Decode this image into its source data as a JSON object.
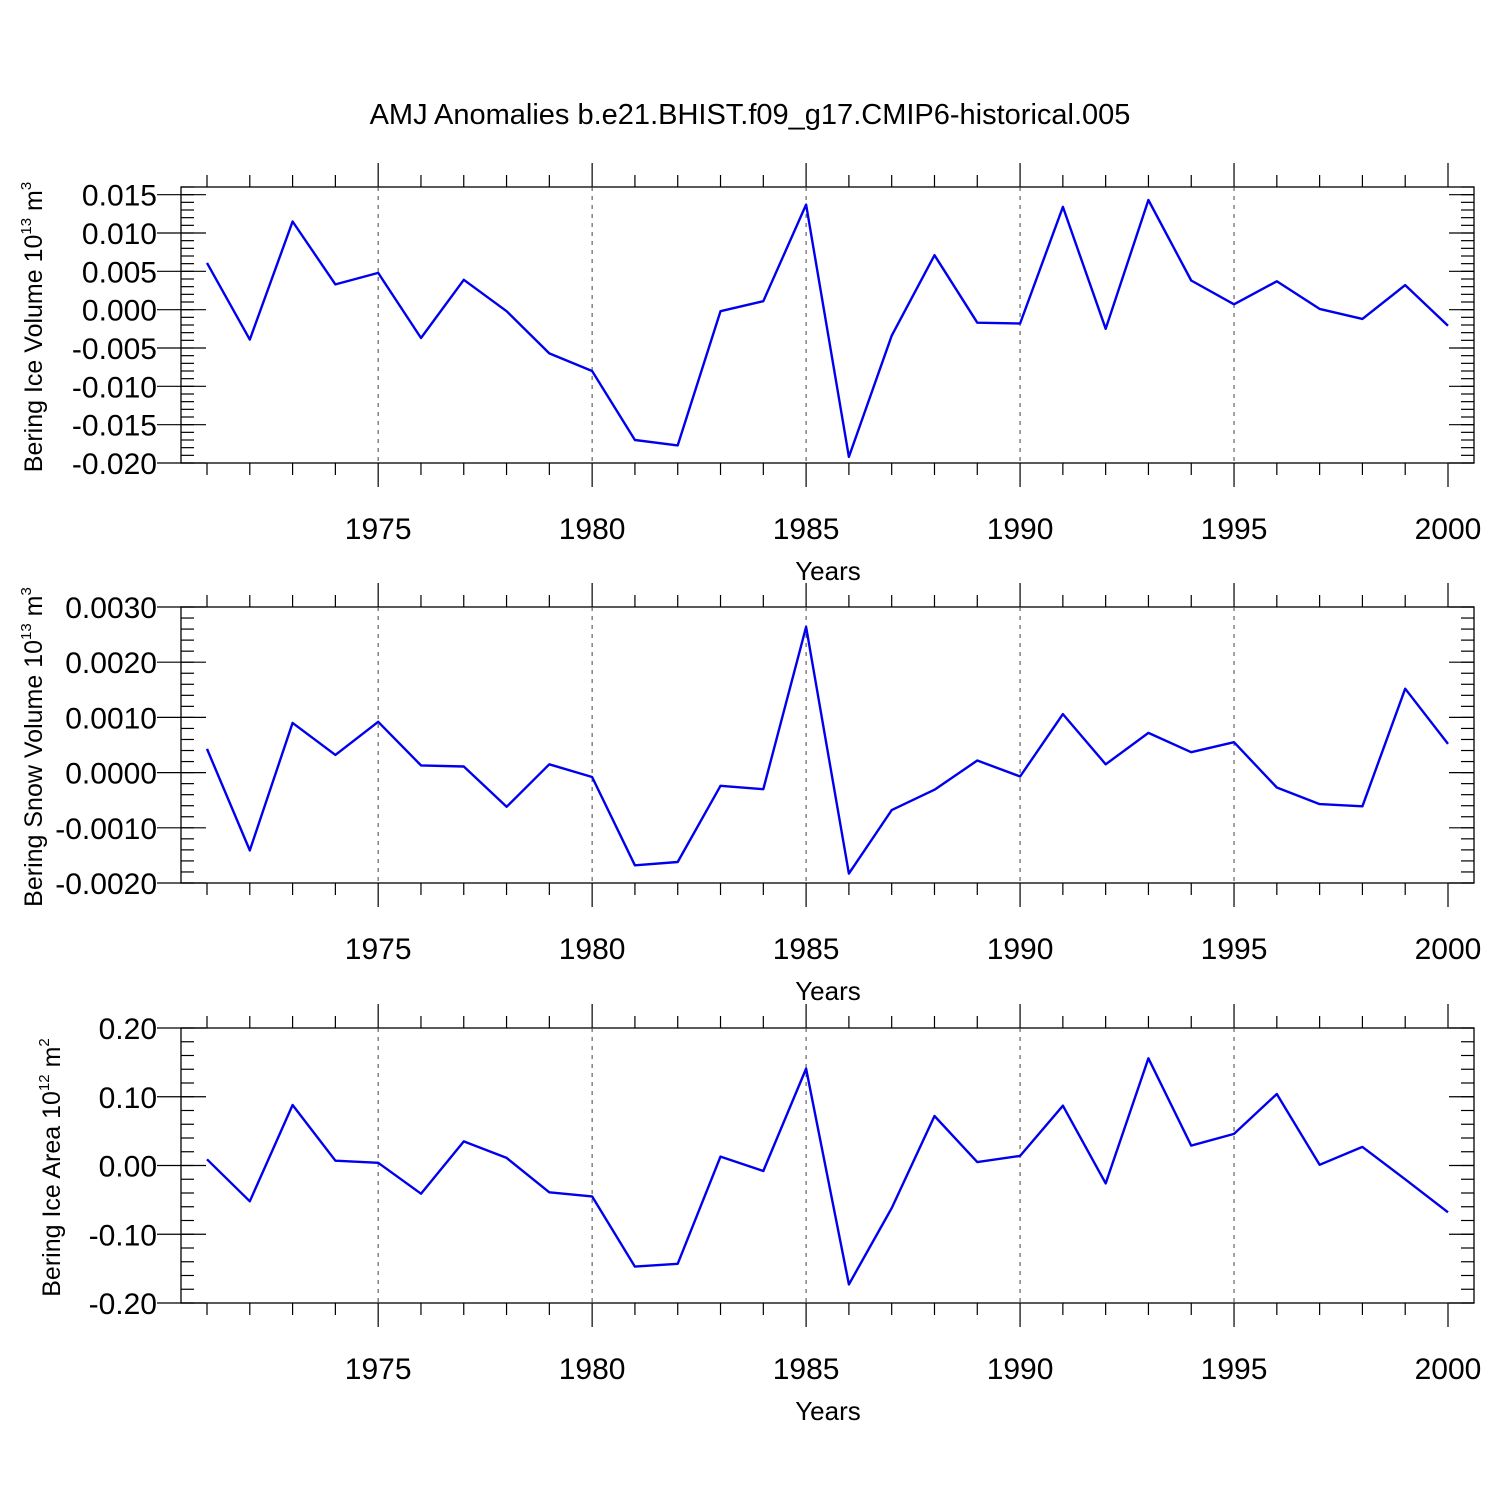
{
  "figure": {
    "title": "AMJ Anomalies b.e21.BHIST.f09_g17.CMIP6-historical.005"
  },
  "line_color": "#0000ee",
  "chart_data": [
    {
      "type": "line",
      "title": "",
      "xlabel": "Years",
      "ylabel": "Bering Ice Volume 10",
      "ylabel_sup": "13",
      "ylabel_unit": " m",
      "ylabel_unit_sup": "3",
      "xlim": [
        1971,
        2000
      ],
      "ylim": [
        -0.02,
        0.016
      ],
      "x_ticks": [
        1975,
        1980,
        1985,
        1990,
        1995,
        2000
      ],
      "y_ticks": [
        "0.015",
        "0.010",
        "0.005",
        "0.000",
        "-0.005",
        "-0.010",
        "-0.015",
        "-0.020"
      ],
      "grid": "vertical dashed at major x ticks",
      "x": [
        1971,
        1972,
        1973,
        1974,
        1975,
        1976,
        1977,
        1978,
        1979,
        1980,
        1981,
        1982,
        1983,
        1984,
        1985,
        1986,
        1987,
        1988,
        1989,
        1990,
        1991,
        1992,
        1993,
        1994,
        1995,
        1996,
        1997,
        1998,
        1999,
        2000
      ],
      "values": [
        0.0061,
        -0.0039,
        0.0115,
        0.0033,
        0.0048,
        -0.0037,
        0.0039,
        -0.0002,
        -0.0057,
        -0.008,
        -0.017,
        -0.0177,
        -0.0002,
        0.0011,
        0.0137,
        -0.0192,
        -0.0034,
        0.0071,
        -0.0017,
        -0.0018,
        0.0134,
        -0.0025,
        0.0143,
        0.0038,
        0.0007,
        0.0037,
        0.0001,
        -0.0012,
        0.0032,
        -0.0021
      ]
    },
    {
      "type": "line",
      "title": "",
      "xlabel": "Years",
      "ylabel": "Bering Snow Volume 10",
      "ylabel_sup": "13",
      "ylabel_unit": " m",
      "ylabel_unit_sup": "3",
      "xlim": [
        1971,
        2000
      ],
      "ylim": [
        -0.002,
        0.003
      ],
      "x_ticks": [
        1975,
        1980,
        1985,
        1990,
        1995,
        2000
      ],
      "y_ticks": [
        "0.0030",
        "0.0020",
        "0.0010",
        "0.0000",
        "-0.0010",
        "-0.0020"
      ],
      "grid": "vertical dashed at major x ticks",
      "x": [
        1971,
        1972,
        1973,
        1974,
        1975,
        1976,
        1977,
        1978,
        1979,
        1980,
        1981,
        1982,
        1983,
        1984,
        1985,
        1986,
        1987,
        1988,
        1989,
        1990,
        1991,
        1992,
        1993,
        1994,
        1995,
        1996,
        1997,
        1998,
        1999,
        2000
      ],
      "values": [
        0.00043,
        -0.00141,
        0.0009,
        0.00032,
        0.00092,
        0.00013,
        0.00011,
        -0.00062,
        0.00015,
        -8e-05,
        -0.00168,
        -0.00162,
        -0.00024,
        -0.0003,
        0.00264,
        -0.00183,
        -0.00068,
        -0.00031,
        0.00022,
        -7e-05,
        0.00106,
        0.00015,
        0.00072,
        0.00037,
        0.00055,
        -0.00027,
        -0.00057,
        -0.00061,
        0.00152,
        0.00052
      ]
    },
    {
      "type": "line",
      "title": "",
      "xlabel": "Years",
      "ylabel": "Bering Ice Area 10",
      "ylabel_sup": "12",
      "ylabel_unit": " m",
      "ylabel_unit_sup": "2",
      "xlim": [
        1971,
        2000
      ],
      "ylim": [
        -0.2,
        0.2
      ],
      "x_ticks": [
        1975,
        1980,
        1985,
        1990,
        1995,
        2000
      ],
      "y_ticks": [
        "0.20",
        "0.10",
        "0.00",
        "-0.10",
        "-0.20"
      ],
      "grid": "vertical dashed at major x ticks",
      "x": [
        1971,
        1972,
        1973,
        1974,
        1975,
        1976,
        1977,
        1978,
        1979,
        1980,
        1981,
        1982,
        1983,
        1984,
        1985,
        1986,
        1987,
        1988,
        1989,
        1990,
        1991,
        1992,
        1993,
        1994,
        1995,
        1996,
        1997,
        1998,
        1999,
        2000
      ],
      "values": [
        0.009,
        -0.052,
        0.088,
        0.007,
        0.004,
        -0.041,
        0.035,
        0.011,
        -0.039,
        -0.045,
        -0.147,
        -0.143,
        0.013,
        -0.008,
        0.141,
        -0.173,
        -0.062,
        0.072,
        0.005,
        0.014,
        0.087,
        -0.026,
        0.156,
        0.029,
        0.046,
        0.104,
        0.001,
        0.027,
        -0.02,
        -0.068
      ]
    }
  ]
}
